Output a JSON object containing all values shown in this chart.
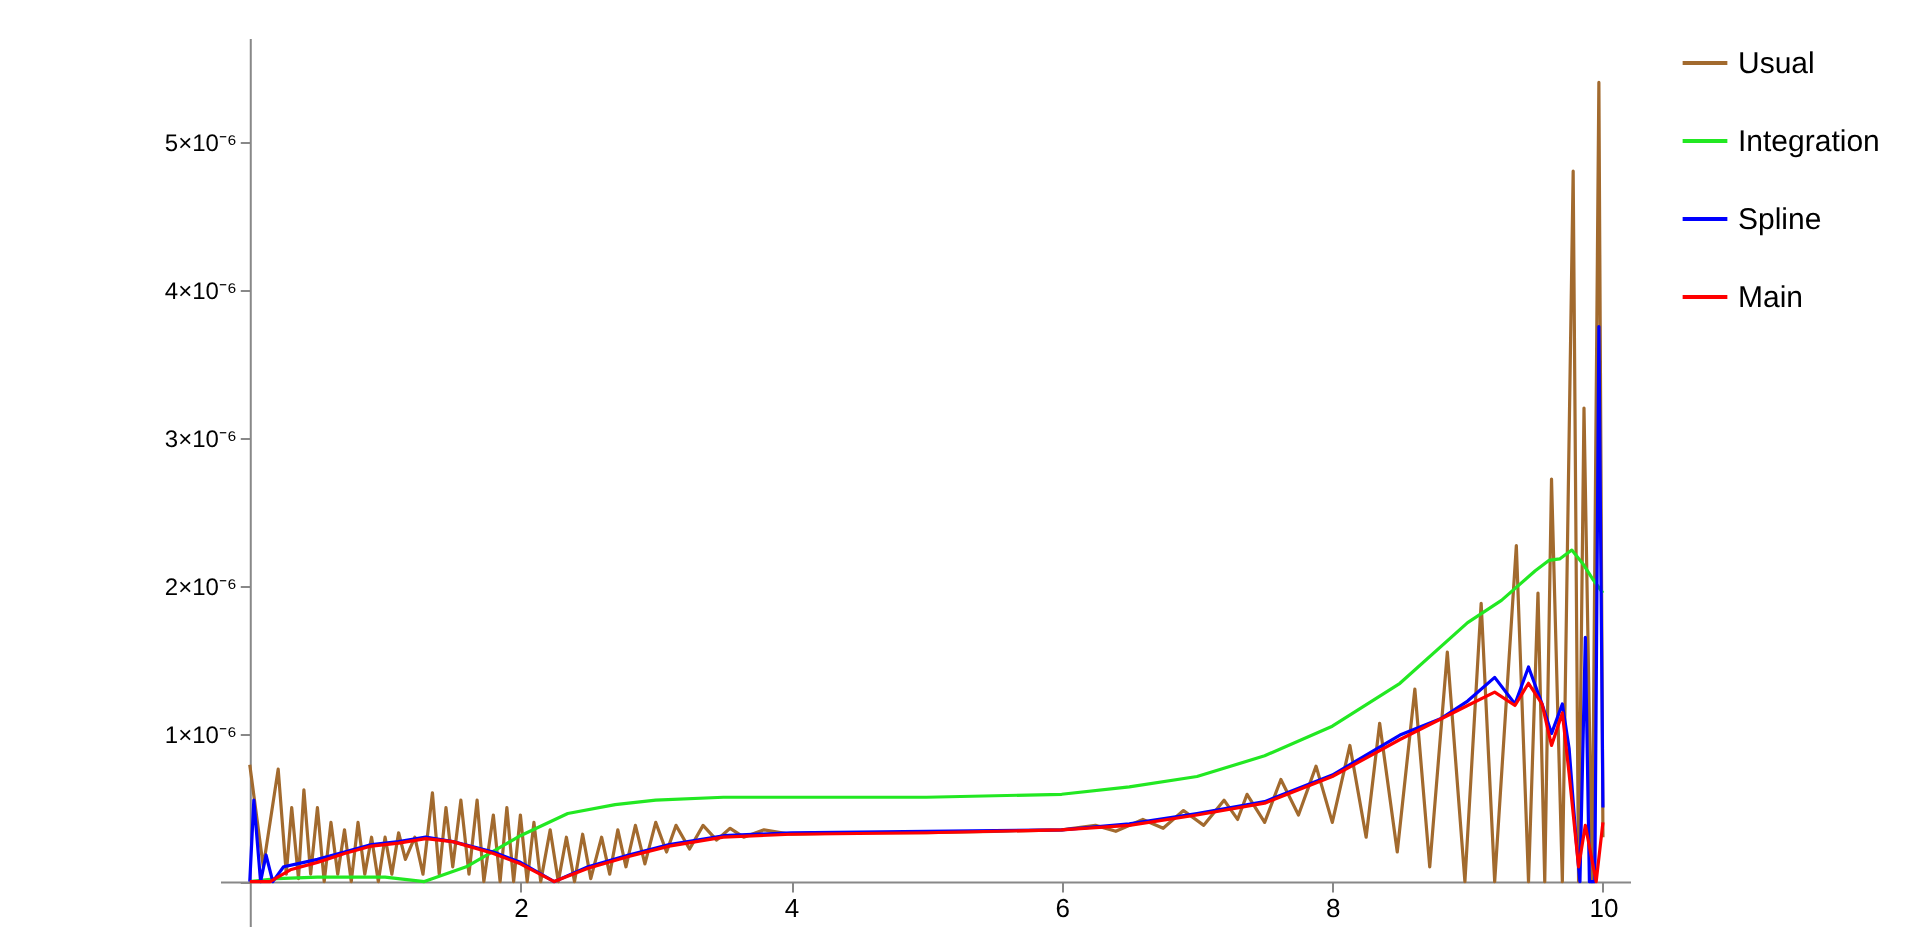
{
  "chart_data": {
    "type": "line",
    "legend": "right",
    "grid": false,
    "marker": "none",
    "line_style": "solid",
    "xlim": [
      -0.22,
      10.2
    ],
    "ylim": [
      -3e-07,
      5.7e-06
    ],
    "xticks": [
      2,
      4,
      6,
      8,
      10
    ],
    "yticks": [
      {
        "value": 0,
        "label": null
      },
      {
        "value": 1e-06,
        "label": "1×10⁻⁶"
      },
      {
        "value": 2e-06,
        "label": "2×10⁻⁶"
      },
      {
        "value": 3e-06,
        "label": "3×10⁻⁶"
      },
      {
        "value": 4e-06,
        "label": "4×10⁻⁶"
      },
      {
        "value": 5e-06,
        "label": "5×10⁻⁶"
      }
    ],
    "series": [
      {
        "name": "Usual",
        "color": "#a26a2e",
        "x": [
          0.0,
          0.1,
          0.21,
          0.27,
          0.31,
          0.36,
          0.4,
          0.45,
          0.5,
          0.55,
          0.6,
          0.65,
          0.7,
          0.75,
          0.8,
          0.85,
          0.9,
          0.95,
          1.0,
          1.05,
          1.1,
          1.15,
          1.22,
          1.28,
          1.35,
          1.4,
          1.45,
          1.5,
          1.56,
          1.62,
          1.68,
          1.73,
          1.8,
          1.85,
          1.9,
          1.95,
          2.0,
          2.05,
          2.1,
          2.15,
          2.22,
          2.28,
          2.34,
          2.4,
          2.46,
          2.52,
          2.6,
          2.66,
          2.72,
          2.78,
          2.85,
          2.92,
          3.0,
          3.08,
          3.15,
          3.25,
          3.35,
          3.45,
          3.55,
          3.65,
          3.8,
          4.0,
          4.5,
          5.0,
          5.5,
          6.0,
          6.25,
          6.4,
          6.6,
          6.75,
          6.9,
          7.05,
          7.2,
          7.3,
          7.37,
          7.5,
          7.62,
          7.75,
          7.88,
          8.0,
          8.13,
          8.25,
          8.35,
          8.48,
          8.61,
          8.72,
          8.85,
          8.98,
          9.1,
          9.2,
          9.36,
          9.45,
          9.52,
          9.57,
          9.62,
          9.7,
          9.78,
          9.82,
          9.86,
          9.92,
          9.97,
          10.0
        ],
        "values": [
          7.9e-07,
          1e-07,
          7.6e-07,
          5e-08,
          5e-07,
          2e-08,
          6.2e-07,
          5e-08,
          5e-07,
          0,
          4e-07,
          5e-08,
          3.5e-07,
          0,
          4e-07,
          5e-08,
          3e-07,
          0,
          3e-07,
          5e-08,
          3.3e-07,
          1.5e-07,
          3e-07,
          5e-08,
          6e-07,
          5e-08,
          5e-07,
          1e-07,
          5.5e-07,
          5e-08,
          5.5e-07,
          0,
          4.5e-07,
          0,
          5e-07,
          0,
          4.5e-07,
          0,
          4e-07,
          0,
          3.5e-07,
          0,
          3e-07,
          0,
          3.2e-07,
          2e-08,
          3e-07,
          5e-08,
          3.5e-07,
          1e-07,
          3.8e-07,
          1.2e-07,
          4e-07,
          2e-07,
          3.8e-07,
          2.2e-07,
          3.8e-07,
          2.8e-07,
          3.6e-07,
          3e-07,
          3.5e-07,
          3.2e-07,
          3.3e-07,
          3.3e-07,
          3.4e-07,
          3.5e-07,
          3.8e-07,
          3.4e-07,
          4.2e-07,
          3.6e-07,
          4.8e-07,
          3.8e-07,
          5.5e-07,
          4.2e-07,
          5.9e-07,
          4e-07,
          6.9e-07,
          4.5e-07,
          7.8e-07,
          4e-07,
          9.2e-07,
          3e-07,
          1.07e-06,
          2e-07,
          1.3e-06,
          1e-07,
          1.55e-06,
          0,
          1.88e-06,
          0,
          2.27e-06,
          0,
          1.95e-06,
          0,
          2.72e-06,
          0,
          4.8e-06,
          0,
          3.2e-06,
          0,
          5.4e-06,
          3e-07
        ]
      },
      {
        "name": "Integration",
        "color": "#22e822",
        "x": [
          0.0,
          0.2,
          0.5,
          1.0,
          1.29,
          1.6,
          2.0,
          2.35,
          2.7,
          3.0,
          3.5,
          4.0,
          5.0,
          6.0,
          6.5,
          7.0,
          7.5,
          8.0,
          8.5,
          9.0,
          9.25,
          9.5,
          9.6,
          9.68,
          9.77,
          9.85,
          9.92,
          10.0
        ],
        "values": [
          0,
          2e-08,
          3e-08,
          3e-08,
          0,
          1e-07,
          3.1e-07,
          4.6e-07,
          5.2e-07,
          5.5e-07,
          5.7e-07,
          5.7e-07,
          5.7e-07,
          5.9e-07,
          6.4e-07,
          7.1e-07,
          8.5e-07,
          1.05e-06,
          1.34e-06,
          1.75e-06,
          1.9e-06,
          2.1e-06,
          2.17e-06,
          2.18e-06,
          2.24e-06,
          2.15e-06,
          2.05e-06,
          1.95e-06
        ]
      },
      {
        "name": "Spline",
        "color": "#0000ff",
        "x": [
          0.0,
          0.03,
          0.08,
          0.12,
          0.17,
          0.25,
          0.35,
          0.5,
          0.7,
          0.9,
          1.1,
          1.3,
          1.5,
          1.8,
          2.0,
          2.25,
          2.5,
          2.8,
          3.1,
          3.5,
          4.0,
          5.0,
          6.0,
          6.5,
          7.0,
          7.5,
          8.0,
          8.5,
          8.8,
          9.0,
          9.2,
          9.35,
          9.45,
          9.55,
          9.62,
          9.7,
          9.75,
          9.8,
          9.83,
          9.87,
          9.9,
          9.94,
          9.97,
          10.0
        ],
        "values": [
          0,
          5.5e-07,
          0,
          1.8e-07,
          0,
          1e-07,
          1.2e-07,
          1.5e-07,
          2e-07,
          2.5e-07,
          2.7e-07,
          3e-07,
          2.7e-07,
          2e-07,
          1.3e-07,
          0,
          1e-07,
          1.8e-07,
          2.5e-07,
          3.1e-07,
          3.3e-07,
          3.4e-07,
          3.5e-07,
          3.9e-07,
          4.6e-07,
          5.4e-07,
          7.2e-07,
          9.9e-07,
          1.1e-06,
          1.22e-06,
          1.38e-06,
          1.2e-06,
          1.45e-06,
          1.2e-06,
          1e-06,
          1.2e-06,
          9e-07,
          3e-07,
          0,
          1.65e-06,
          0,
          0,
          3.75e-06,
          5e-07
        ]
      },
      {
        "name": "Main",
        "color": "#ff0000",
        "x": [
          0.0,
          0.15,
          0.3,
          0.5,
          0.7,
          0.9,
          1.1,
          1.3,
          1.5,
          1.8,
          2.0,
          2.25,
          2.5,
          2.8,
          3.1,
          3.5,
          4.0,
          5.0,
          6.0,
          6.5,
          7.0,
          7.5,
          8.0,
          8.5,
          9.0,
          9.2,
          9.35,
          9.45,
          9.55,
          9.62,
          9.7,
          9.75,
          9.82,
          9.87,
          9.95,
          10.0
        ],
        "values": [
          0,
          0,
          8e-08,
          1.3e-07,
          1.9e-07,
          2.4e-07,
          2.6e-07,
          2.9e-07,
          2.7e-07,
          1.9e-07,
          1.2e-07,
          0,
          9e-08,
          1.7e-07,
          2.4e-07,
          3e-07,
          3.2e-07,
          3.3e-07,
          3.5e-07,
          3.8e-07,
          4.5e-07,
          5.3e-07,
          7.1e-07,
          9.6e-07,
          1.19e-06,
          1.28e-06,
          1.19e-06,
          1.34e-06,
          1.2e-06,
          9.2e-07,
          1.14e-06,
          7.3e-07,
          1e-07,
          3.8e-07,
          0,
          4e-07
        ]
      }
    ]
  }
}
